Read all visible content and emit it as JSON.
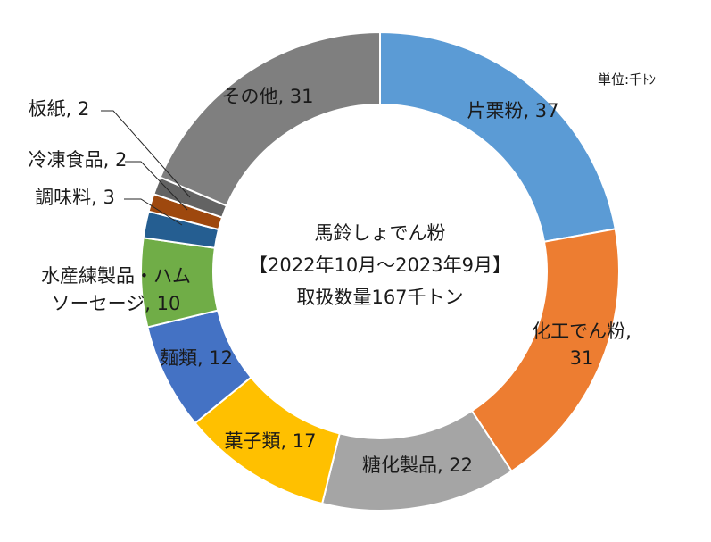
{
  "unit_label": "単位:千ﾄﾝ",
  "center_text": {
    "line1": "馬鈴しょでん粉",
    "line2": "【2022年10月～2023年9月】",
    "line3": "取扱数量167千トン"
  },
  "chart_data": {
    "type": "pie",
    "donut": true,
    "unit": "千トン",
    "total": 167,
    "slices": [
      {
        "name": "片栗粉",
        "value": 37,
        "color": "#5b9bd5",
        "label": "片栗粉, 37"
      },
      {
        "name": "化工でん粉",
        "value": 31,
        "color": "#ed7d31",
        "label": "化工でん粉,|31"
      },
      {
        "name": "糖化製品",
        "value": 22,
        "color": "#a5a5a5",
        "label": "糖化製品, 22"
      },
      {
        "name": "菓子類",
        "value": 17,
        "color": "#ffc000",
        "label": "菓子類, 17"
      },
      {
        "name": "麺類",
        "value": 12,
        "color": "#4472c4",
        "label": "麺類, 12"
      },
      {
        "name": "水産練製品・ハムソーセージ",
        "value": 10,
        "color": "#70ad47",
        "label": "水産練製品・ハム|ソーセージ, 10"
      },
      {
        "name": "調味料",
        "value": 3,
        "color": "#255e91",
        "label": "調味料, 3"
      },
      {
        "name": "冷凍食品",
        "value": 2,
        "color": "#9e480e",
        "label": "冷凍食品, 2"
      },
      {
        "name": "板紙",
        "value": 2,
        "color": "#636363",
        "label": "板紙, 2"
      },
      {
        "name": "その他",
        "value": 31,
        "color": "#7f7f7f",
        "label": "その他, 31"
      }
    ]
  }
}
